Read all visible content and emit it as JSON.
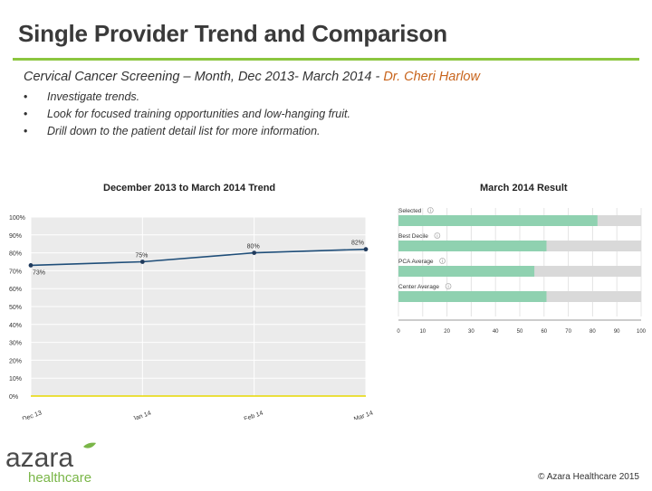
{
  "slide": {
    "title": "Single Provider Trend and Comparison",
    "subtitle_main": "Cervical Cancer Screening – Month,  Dec 2013- March 2014 - ",
    "subtitle_doctor": "Dr. Cheri Harlow",
    "bullets": [
      "Investigate trends.",
      "Look for focused training opportunities and low-hanging fruit.",
      "Drill down to the patient detail list for more information."
    ],
    "footer": "© Azara Healthcare 2015"
  },
  "logo": {
    "top": "azara",
    "bottom": "healthcare",
    "color_top": "#4a4a4a",
    "color_bottom": "#7ab648"
  },
  "colors": {
    "accent": "#8cc63f",
    "trend_line": "#1f4e79",
    "bar_fill": "#8fd1b0",
    "bar_track": "#d9d9d9",
    "baseline": "#e8d800",
    "doctor_name": "#c8641c"
  },
  "chart_data": [
    {
      "type": "line",
      "title": "December 2013 to March 2014 Trend",
      "categories": [
        "Dec 13",
        "Jan 14",
        "Feb 14",
        "Mar 14"
      ],
      "series": [
        {
          "values": [
            73,
            75,
            80,
            82
          ]
        }
      ],
      "point_labels": [
        "73%",
        "75%",
        "80%",
        "82%"
      ],
      "ylim": [
        0,
        100
      ],
      "y_ticks": [
        "0%",
        "10%",
        "20%",
        "30%",
        "40%",
        "50%",
        "60%",
        "70%",
        "80%",
        "90%",
        "100%"
      ],
      "grid": true
    },
    {
      "type": "bar",
      "orientation": "horizontal",
      "title": "March 2014 Result",
      "categories": [
        "Selected",
        "Best Decile",
        "PCA Average",
        "Center Average"
      ],
      "values": [
        82,
        61,
        56,
        61
      ],
      "xlim": [
        0,
        100
      ],
      "x_ticks": [
        "0",
        "10",
        "20",
        "30",
        "40",
        "50",
        "60",
        "70",
        "80",
        "90",
        "100"
      ],
      "info_icon": "info-icon"
    }
  ]
}
